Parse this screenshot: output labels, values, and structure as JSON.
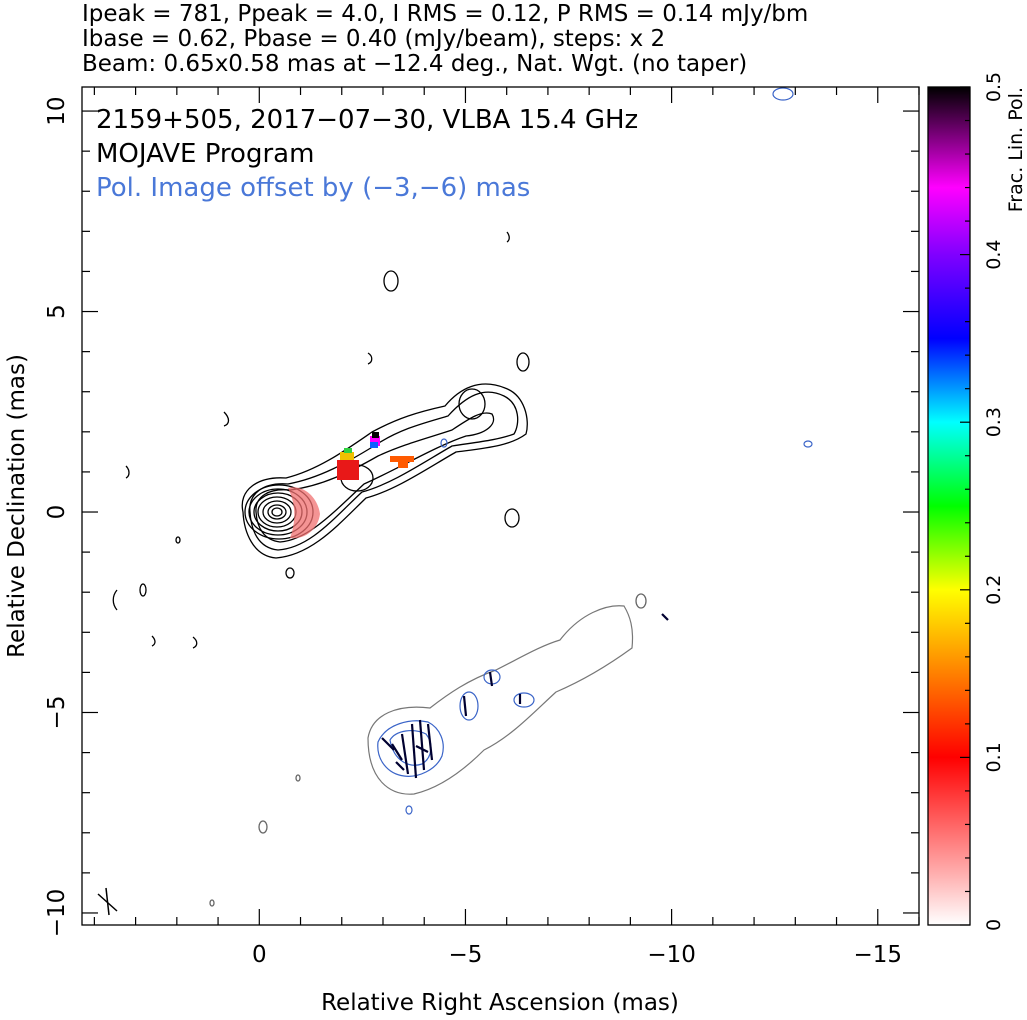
{
  "header": {
    "line1": "Ipeak = 781, Ppeak = 4.0, I RMS = 0.12, P RMS = 0.14 mJy/bm",
    "line2": "Ibase = 0.62, Pbase = 0.40 (mJy/beam), steps: x 2",
    "line3": "Beam: 0.65x0.58 mas at −12.4 deg., Nat. Wgt. (no taper)"
  },
  "annotations": {
    "source": "2159+505, 2017−07−30, VLBA 15.4 GHz",
    "program": "MOJAVE Program",
    "pol_offset": "Pol. Image offset by (−3,−6) mas"
  },
  "colors": {
    "pol_text": "#4a78d8",
    "total_intensity_contour": "#000000",
    "pol_intensity_contour": "#3a64c8",
    "pol_offset_stokes_i_contour": "#777777",
    "evpa_tick": "#000030"
  },
  "chart_data": {
    "type": "contour",
    "xlabel": "Relative Right Ascension (mas)",
    "ylabel": "Relative Declination (mas)",
    "xlim": [
      4.3,
      -16.0
    ],
    "ylim": [
      -10.3,
      10.6
    ],
    "x_ticks": [
      0,
      -5,
      -10,
      -15
    ],
    "x_tick_labels": [
      "0",
      "−5",
      "−10",
      "−15"
    ],
    "y_ticks": [
      10,
      5,
      0,
      -5,
      -10
    ],
    "y_tick_labels": [
      "10",
      "5",
      "0",
      "−5",
      "−10"
    ],
    "core": {
      "ra": 0,
      "dec": 0
    },
    "contour_levels_mJy_per_beam": [
      0.62,
      1.24,
      2.48,
      4.96,
      9.92,
      19.84,
      39.68,
      79.36,
      158.72,
      317.44,
      634.88
    ],
    "jet_direction": "north-west",
    "colorbar": {
      "label": "Frac. Lin. Pol.",
      "range": [
        0,
        0.5
      ],
      "ticks": [
        0,
        0.1,
        0.2,
        0.3,
        0.4,
        0.5
      ],
      "tick_labels": [
        "0",
        "0.1",
        "0.2",
        "0.3",
        "0.4",
        "0.5"
      ],
      "scale": [
        "#ffffff",
        "#ffb0b0",
        "#ff0000",
        "#ff8000",
        "#ffff00",
        "#00ff00",
        "#00ffff",
        "#0000ff",
        "#8000ff",
        "#ff00ff",
        "#000000"
      ]
    },
    "frac_pol_patches": [
      {
        "ra": -0.6,
        "dec": -0.1,
        "frac_pol": 0.04
      },
      {
        "ra": -1.8,
        "dec": 1.2,
        "frac_pol": 0.09
      },
      {
        "ra": -1.7,
        "dec": 1.4,
        "frac_pol": 0.2
      },
      {
        "ra": -2.5,
        "dec": 1.8,
        "frac_pol": 0.35
      },
      {
        "ra": -3.2,
        "dec": 1.3,
        "frac_pol": 0.13
      }
    ],
    "pol_image_offset_mas": [
      -3,
      -6
    ],
    "beam": {
      "major": 0.65,
      "minor": 0.58,
      "pa": -12.4
    }
  }
}
